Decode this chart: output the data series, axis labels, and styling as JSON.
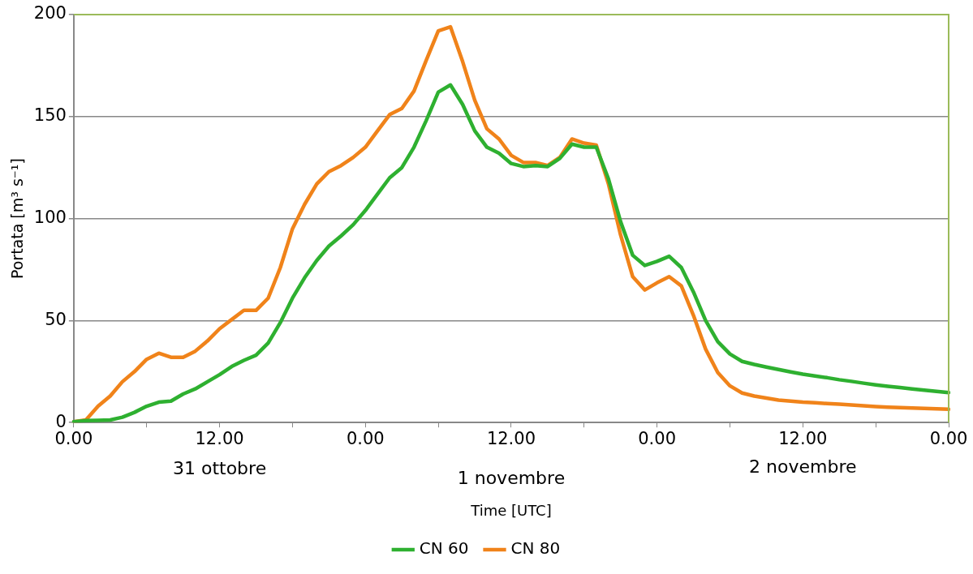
{
  "chart_data": {
    "type": "line",
    "xlabel": "Time [UTC]",
    "ylabel": "Portata [m³ s⁻¹]",
    "categories": [
      "0.00",
      null,
      null,
      null,
      null,
      null,
      null,
      null,
      null,
      null,
      null,
      null,
      "12.00",
      null,
      null,
      null,
      null,
      null,
      null,
      null,
      null,
      null,
      null,
      null,
      "0.00",
      null,
      null,
      null,
      null,
      null,
      null,
      null,
      null,
      null,
      null,
      null,
      "12.00",
      null,
      null,
      null,
      null,
      null,
      null,
      null,
      null,
      null,
      null,
      null,
      "0.00",
      null,
      null,
      null,
      null,
      null,
      null,
      null,
      null,
      null,
      null,
      null,
      "12.00",
      null,
      null,
      null,
      null,
      null,
      null,
      null,
      null,
      null,
      null,
      null,
      "0.00"
    ],
    "ylim": [
      0,
      200
    ],
    "yticks": [
      0,
      50,
      100,
      150,
      200
    ],
    "grid": "y",
    "legend": "bottom",
    "marker": "none",
    "line_style": "solid",
    "annotations": [
      "31 ottobre",
      "1 novembre",
      "2 novembre"
    ],
    "series": [
      {
        "name": "CN 60",
        "color": "#2eb030",
        "values": [
          0.4,
          1,
          1.1,
          1.3,
          2.6,
          5,
          8,
          10,
          10.5,
          14,
          16.5,
          20,
          23.5,
          27.5,
          30.5,
          33,
          39,
          49,
          61,
          71,
          79.5,
          86.5,
          91.5,
          97,
          104,
          112,
          120,
          125,
          135,
          148,
          162,
          165.5,
          156,
          143,
          135,
          132,
          127,
          125.5,
          126,
          125.5,
          129.5,
          136.5,
          135,
          135,
          119.5,
          98.5,
          82,
          77,
          79,
          81.5,
          76,
          64,
          50,
          39.7,
          33.6,
          30,
          28.5,
          27.2,
          26,
          24.8,
          23.7,
          22.8,
          22,
          21,
          20.2,
          19.3,
          18.5,
          17.8,
          17.2,
          16.5,
          15.9,
          15.3,
          14.7
        ]
      },
      {
        "name": "CN 80",
        "color": "#f0831a",
        "values": [
          0.4,
          1.3,
          8,
          13,
          20,
          25,
          31,
          34,
          32,
          32,
          35,
          40,
          46,
          50.5,
          55,
          55,
          61,
          76,
          95,
          107,
          117,
          123,
          126,
          130,
          135,
          143,
          151,
          154,
          162.5,
          177.5,
          192,
          194,
          177,
          158,
          144,
          139,
          131,
          127.5,
          127.5,
          126,
          130,
          139,
          137,
          136,
          117,
          92,
          71.5,
          65,
          68.5,
          71.5,
          67,
          52.5,
          36,
          24.5,
          18,
          14.5,
          13,
          12,
          11,
          10.5,
          10,
          9.7,
          9.3,
          9,
          8.6,
          8.2,
          7.8,
          7.5,
          7.3,
          7.1,
          6.9,
          6.7,
          6.5
        ]
      }
    ]
  }
}
